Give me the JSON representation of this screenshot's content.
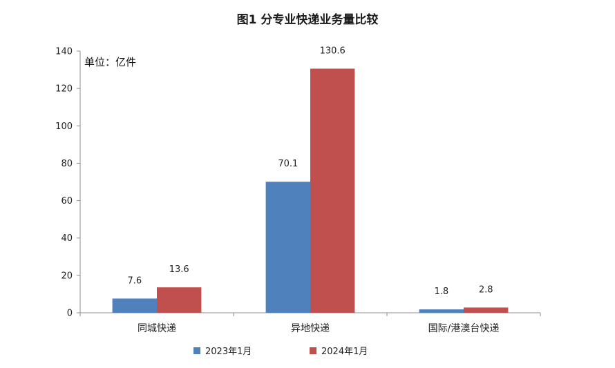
{
  "chart_data": {
    "type": "bar",
    "title": "图1    分专业快递业务量比较",
    "unit_label": "单位：亿件",
    "categories": [
      "同城快递",
      "异地快递",
      "国际/港澳台快递"
    ],
    "series": [
      {
        "name": "2023年1月",
        "color": "#4f81bd",
        "values": [
          7.6,
          70.1,
          1.8
        ],
        "labels": [
          "7.6",
          "70.1",
          "1.8"
        ]
      },
      {
        "name": "2024年1月",
        "color": "#c0504d",
        "values": [
          13.6,
          130.6,
          2.8
        ],
        "labels": [
          "13.6",
          "130.6",
          "2.8"
        ]
      }
    ],
    "ylim": [
      0,
      140
    ],
    "yticks": [
      0,
      20,
      40,
      60,
      80,
      100,
      120,
      140
    ],
    "grid": false,
    "legend_position": "bottom"
  }
}
